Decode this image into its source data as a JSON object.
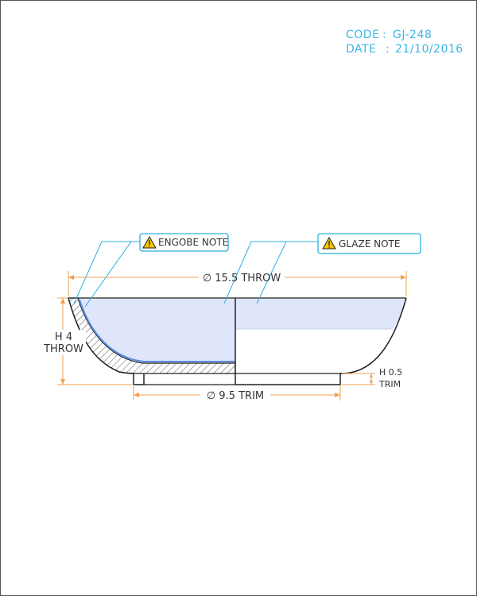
{
  "meta": {
    "code_label": "CODE",
    "code_value": "GJ-248",
    "date_label": "DATE",
    "date_value": "21/10/2016"
  },
  "notes": {
    "engobe": "ENGOBE NOTE",
    "glaze": "GLAZE NOTE"
  },
  "dimensions": {
    "throw_diameter": "∅ 15.5 THROW",
    "trim_diameter": "∅ 9.5 TRIM",
    "height_line1": "H 4",
    "height_line2": "THROW",
    "foot_line1": "H 0.5",
    "foot_line2": "TRIM"
  },
  "colors": {
    "outline": "#222222",
    "dimension": "#f0a050",
    "leader": "#2bb0e0",
    "glaze_fill": "#dfe6fb",
    "engobe_line": "#5c8fe0",
    "meta_text": "#3bb5e6",
    "warning": "#f5c400"
  },
  "icons": [
    "warning-icon"
  ]
}
